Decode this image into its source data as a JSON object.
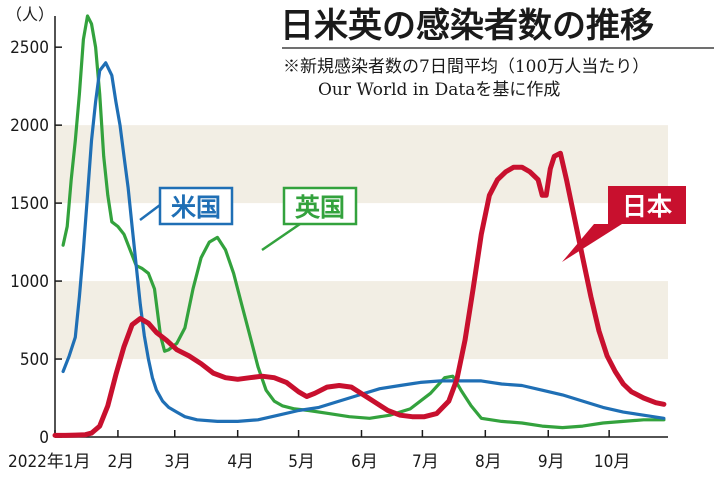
{
  "header": {
    "title": "日米英の感染者数の推移",
    "note_line1": "※新規感染者数の7日間平均（100万人当たり）",
    "note_line2": "Our World in Dataを基に作成"
  },
  "chart_data": {
    "type": "line",
    "y_unit_label": "（人）",
    "ylim": [
      0,
      2700
    ],
    "y_ticks": [
      0,
      500,
      1000,
      1500,
      2000,
      2500
    ],
    "y_tick_labels": [
      "0",
      "500",
      "1000",
      "1500",
      "2000",
      "2500"
    ],
    "x_range_days": [
      0,
      302
    ],
    "x_ticks": [
      {
        "day": 0,
        "label": "2022年1月"
      },
      {
        "day": 31,
        "label": "2月"
      },
      {
        "day": 59,
        "label": "3月"
      },
      {
        "day": 90,
        "label": "4月"
      },
      {
        "day": 120,
        "label": "5月"
      },
      {
        "day": 151,
        "label": "6月"
      },
      {
        "day": 181,
        "label": "7月"
      },
      {
        "day": 212,
        "label": "8月"
      },
      {
        "day": 243,
        "label": "9月"
      },
      {
        "day": 273,
        "label": "10月"
      }
    ],
    "bands": [
      [
        500,
        1000
      ],
      [
        1500,
        2000
      ]
    ],
    "grid": false,
    "series": [
      {
        "name": "米国",
        "color": "#1f6fb5",
        "points": [
          [
            4,
            420
          ],
          [
            7,
            520
          ],
          [
            10,
            640
          ],
          [
            12,
            900
          ],
          [
            14,
            1200
          ],
          [
            16,
            1550
          ],
          [
            18,
            1900
          ],
          [
            20,
            2150
          ],
          [
            22,
            2350
          ],
          [
            25,
            2400
          ],
          [
            28,
            2320
          ],
          [
            30,
            2150
          ],
          [
            32,
            2000
          ],
          [
            34,
            1800
          ],
          [
            36,
            1600
          ],
          [
            38,
            1350
          ],
          [
            40,
            1100
          ],
          [
            42,
            850
          ],
          [
            44,
            650
          ],
          [
            46,
            500
          ],
          [
            48,
            380
          ],
          [
            50,
            300
          ],
          [
            53,
            230
          ],
          [
            56,
            190
          ],
          [
            60,
            160
          ],
          [
            64,
            130
          ],
          [
            70,
            110
          ],
          [
            80,
            100
          ],
          [
            90,
            100
          ],
          [
            100,
            110
          ],
          [
            110,
            140
          ],
          [
            120,
            170
          ],
          [
            130,
            190
          ],
          [
            140,
            230
          ],
          [
            150,
            270
          ],
          [
            160,
            310
          ],
          [
            170,
            330
          ],
          [
            180,
            350
          ],
          [
            190,
            360
          ],
          [
            200,
            360
          ],
          [
            210,
            360
          ],
          [
            220,
            340
          ],
          [
            230,
            330
          ],
          [
            240,
            300
          ],
          [
            250,
            270
          ],
          [
            260,
            230
          ],
          [
            270,
            190
          ],
          [
            280,
            160
          ],
          [
            290,
            140
          ],
          [
            300,
            120
          ]
        ]
      },
      {
        "name": "英国",
        "color": "#33a23d",
        "points": [
          [
            4,
            1230
          ],
          [
            6,
            1350
          ],
          [
            8,
            1650
          ],
          [
            10,
            1900
          ],
          [
            12,
            2200
          ],
          [
            14,
            2550
          ],
          [
            16,
            2700
          ],
          [
            18,
            2650
          ],
          [
            20,
            2500
          ],
          [
            22,
            2200
          ],
          [
            24,
            1800
          ],
          [
            26,
            1550
          ],
          [
            28,
            1380
          ],
          [
            31,
            1350
          ],
          [
            34,
            1300
          ],
          [
            37,
            1200
          ],
          [
            40,
            1100
          ],
          [
            43,
            1080
          ],
          [
            46,
            1050
          ],
          [
            49,
            950
          ],
          [
            52,
            650
          ],
          [
            54,
            550
          ],
          [
            56,
            560
          ],
          [
            60,
            600
          ],
          [
            64,
            700
          ],
          [
            68,
            950
          ],
          [
            72,
            1150
          ],
          [
            76,
            1250
          ],
          [
            80,
            1280
          ],
          [
            84,
            1200
          ],
          [
            88,
            1050
          ],
          [
            92,
            850
          ],
          [
            96,
            650
          ],
          [
            100,
            450
          ],
          [
            104,
            300
          ],
          [
            108,
            230
          ],
          [
            112,
            200
          ],
          [
            118,
            180
          ],
          [
            125,
            170
          ],
          [
            135,
            150
          ],
          [
            145,
            130
          ],
          [
            155,
            120
          ],
          [
            165,
            140
          ],
          [
            175,
            180
          ],
          [
            185,
            280
          ],
          [
            192,
            380
          ],
          [
            196,
            390
          ],
          [
            200,
            300
          ],
          [
            205,
            200
          ],
          [
            210,
            120
          ],
          [
            220,
            100
          ],
          [
            230,
            90
          ],
          [
            240,
            70
          ],
          [
            250,
            60
          ],
          [
            260,
            70
          ],
          [
            270,
            90
          ],
          [
            280,
            100
          ],
          [
            290,
            110
          ],
          [
            300,
            110
          ]
        ]
      },
      {
        "name": "日本",
        "color": "#c8102e",
        "points": [
          [
            0,
            10
          ],
          [
            5,
            10
          ],
          [
            10,
            12
          ],
          [
            15,
            15
          ],
          [
            18,
            25
          ],
          [
            22,
            70
          ],
          [
            26,
            200
          ],
          [
            30,
            400
          ],
          [
            34,
            580
          ],
          [
            38,
            720
          ],
          [
            42,
            760
          ],
          [
            46,
            730
          ],
          [
            50,
            670
          ],
          [
            55,
            620
          ],
          [
            60,
            560
          ],
          [
            66,
            520
          ],
          [
            72,
            470
          ],
          [
            78,
            410
          ],
          [
            84,
            380
          ],
          [
            90,
            370
          ],
          [
            96,
            380
          ],
          [
            102,
            390
          ],
          [
            108,
            380
          ],
          [
            114,
            350
          ],
          [
            120,
            290
          ],
          [
            124,
            260
          ],
          [
            128,
            280
          ],
          [
            134,
            320
          ],
          [
            140,
            330
          ],
          [
            146,
            320
          ],
          [
            152,
            270
          ],
          [
            158,
            220
          ],
          [
            164,
            170
          ],
          [
            170,
            140
          ],
          [
            176,
            130
          ],
          [
            182,
            130
          ],
          [
            188,
            150
          ],
          [
            194,
            230
          ],
          [
            198,
            370
          ],
          [
            202,
            620
          ],
          [
            206,
            950
          ],
          [
            210,
            1300
          ],
          [
            214,
            1550
          ],
          [
            218,
            1650
          ],
          [
            222,
            1700
          ],
          [
            226,
            1730
          ],
          [
            230,
            1730
          ],
          [
            234,
            1700
          ],
          [
            238,
            1650
          ],
          [
            240,
            1550
          ],
          [
            242,
            1550
          ],
          [
            244,
            1720
          ],
          [
            246,
            1800
          ],
          [
            249,
            1820
          ],
          [
            252,
            1650
          ],
          [
            256,
            1400
          ],
          [
            260,
            1150
          ],
          [
            264,
            900
          ],
          [
            268,
            680
          ],
          [
            272,
            520
          ],
          [
            276,
            420
          ],
          [
            280,
            340
          ],
          [
            284,
            290
          ],
          [
            290,
            250
          ],
          [
            296,
            220
          ],
          [
            300,
            210
          ]
        ]
      }
    ],
    "labels": [
      {
        "series": "米国",
        "text": "米国"
      },
      {
        "series": "英国",
        "text": "英国"
      },
      {
        "series": "日本",
        "text": "日本"
      }
    ]
  }
}
